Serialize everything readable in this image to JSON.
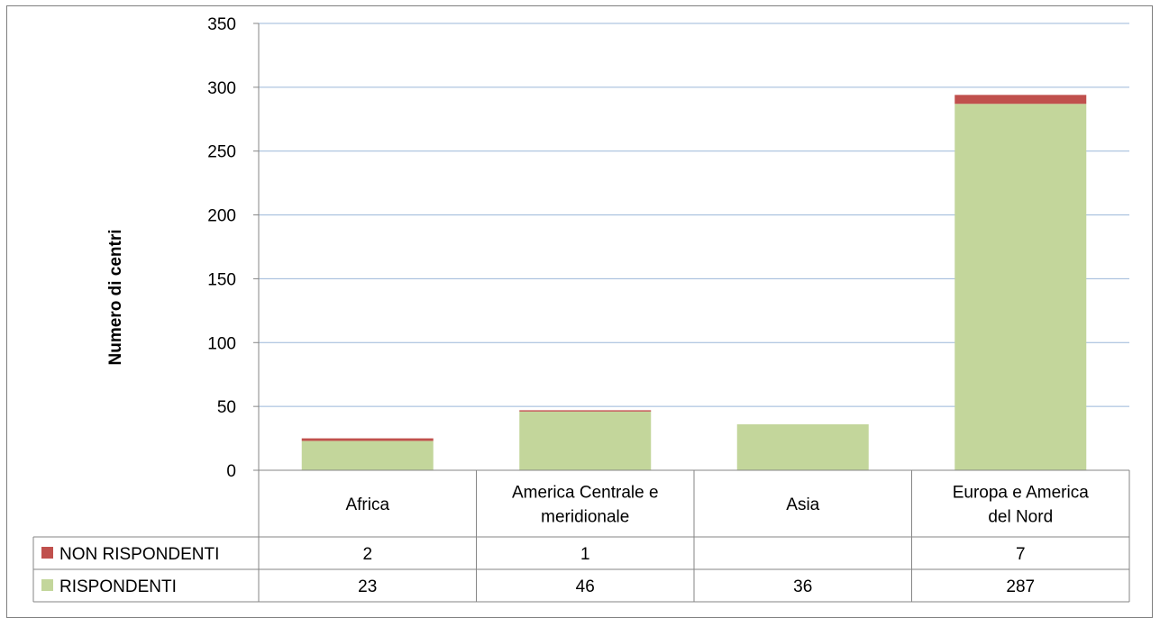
{
  "chart_data": {
    "type": "bar",
    "stacked": true,
    "title": "",
    "xlabel": "",
    "ylabel": "Numero di centri",
    "ylim": [
      0,
      350
    ],
    "yticks": [
      0,
      50,
      100,
      150,
      200,
      250,
      300,
      350
    ],
    "grid": true,
    "legend": "data-table-rows",
    "categories": [
      [
        "Africa"
      ],
      [
        "America Centrale e",
        "meridionale"
      ],
      [
        "Asia"
      ],
      [
        "Europa e America",
        "del Nord"
      ]
    ],
    "series": [
      {
        "name": "RISPONDENTI",
        "color": "#c3d69b",
        "values": [
          23,
          46,
          36,
          287
        ]
      },
      {
        "name": "NON RISPONDENTI",
        "color": "#c0504d",
        "values": [
          2,
          1,
          null,
          7
        ]
      }
    ]
  }
}
